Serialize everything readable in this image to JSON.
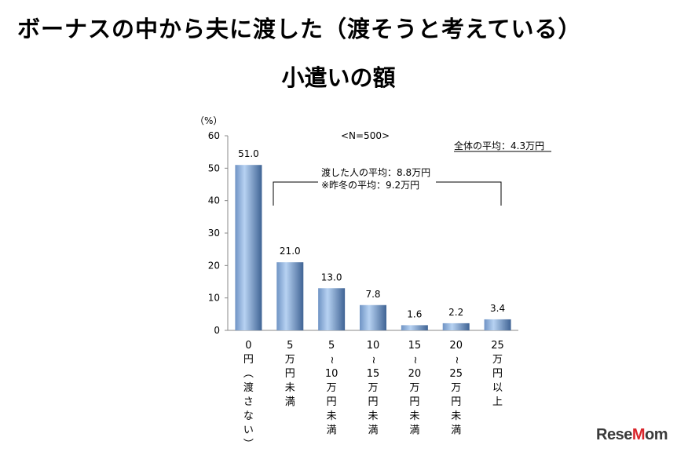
{
  "title_line1": "ボーナスの中から夫に渡した（渡そうと考えている）",
  "title_line2": "小遣いの額",
  "logo": "ReseMom",
  "chart_data": {
    "type": "bar",
    "title": "ボーナスの中から夫に渡した（渡そうと考えている）小遣いの額",
    "ylabel": "（%）",
    "ylim": [
      0,
      60
    ],
    "yticks": [
      "0",
      "10",
      "20",
      "30",
      "40",
      "50",
      "60"
    ],
    "sample_note": "<N=500>",
    "overall_avg": "全体の平均：4.3万円",
    "giver_avg": "渡した人の平均：8.8万円",
    "last_winter_avg": "※昨冬の平均：9.2万円",
    "categories": [
      [
        "0",
        "円",
        "︵",
        "渡",
        "さ",
        "な",
        "い",
        "︶"
      ],
      [
        "5",
        "万",
        "円",
        "未",
        "満"
      ],
      [
        "5",
        "~",
        "10",
        "万",
        "円",
        "未",
        "満"
      ],
      [
        "10",
        "~",
        "15",
        "万",
        "円",
        "未",
        "満"
      ],
      [
        "15",
        "~",
        "20",
        "万",
        "円",
        "未",
        "満"
      ],
      [
        "20",
        "~",
        "25",
        "万",
        "円",
        "未",
        "満"
      ],
      [
        "25",
        "万",
        "円",
        "以",
        "上"
      ]
    ],
    "values": [
      51.0,
      21.0,
      13.0,
      7.8,
      1.6,
      2.2,
      3.4
    ],
    "value_labels": [
      "51.0",
      "21.0",
      "13.0",
      "7.8",
      "1.6",
      "2.2",
      "3.4"
    ],
    "colors": {
      "bar_light": "#a9c6ea",
      "bar_dark": "#4a6fa0"
    }
  }
}
